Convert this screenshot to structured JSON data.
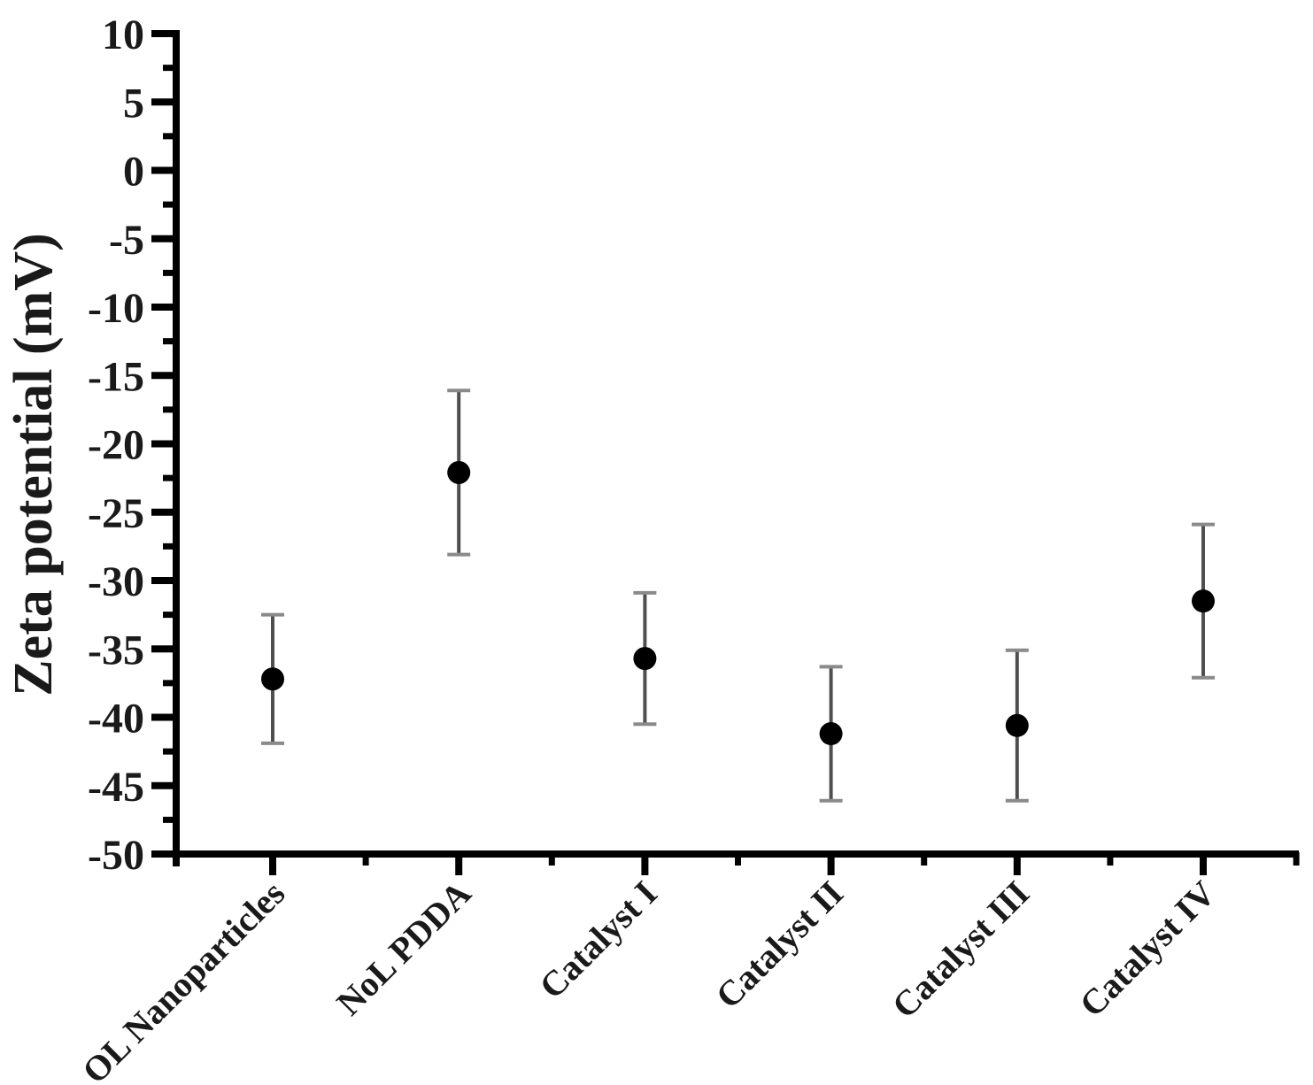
{
  "figure": {
    "background_color": "#ffffff",
    "axis_color": "#000000"
  },
  "chart_data": {
    "type": "scatter",
    "title": "",
    "xlabel": "",
    "ylabel": "Zeta potential (mV)",
    "ylim": [
      -50,
      10
    ],
    "ytick_major_step": 5,
    "ytick_minor_step": 2.5,
    "yticks": [
      10,
      5,
      0,
      -5,
      -10,
      -15,
      -20,
      -25,
      -30,
      -35,
      -40,
      -45,
      -50
    ],
    "grid": false,
    "legend": "none",
    "categories": [
      "OL Nanoparticles",
      "NoL PDDA",
      "Catalyst I",
      "Catalyst II",
      "Catalyst III",
      "Catalyst IV"
    ],
    "series": [
      {
        "name": "Zeta potential",
        "values": [
          -37.2,
          -22.1,
          -35.7,
          -41.2,
          -40.6,
          -31.5
        ],
        "errors": [
          4.7,
          6.0,
          4.8,
          4.9,
          5.5,
          5.6
        ]
      }
    ],
    "marker": {
      "shape": "circle",
      "color": "#000000",
      "radius_px": 13
    },
    "error_bar": {
      "line_color": "#4f4f4f",
      "cap_color": "#8a8a8a"
    }
  }
}
